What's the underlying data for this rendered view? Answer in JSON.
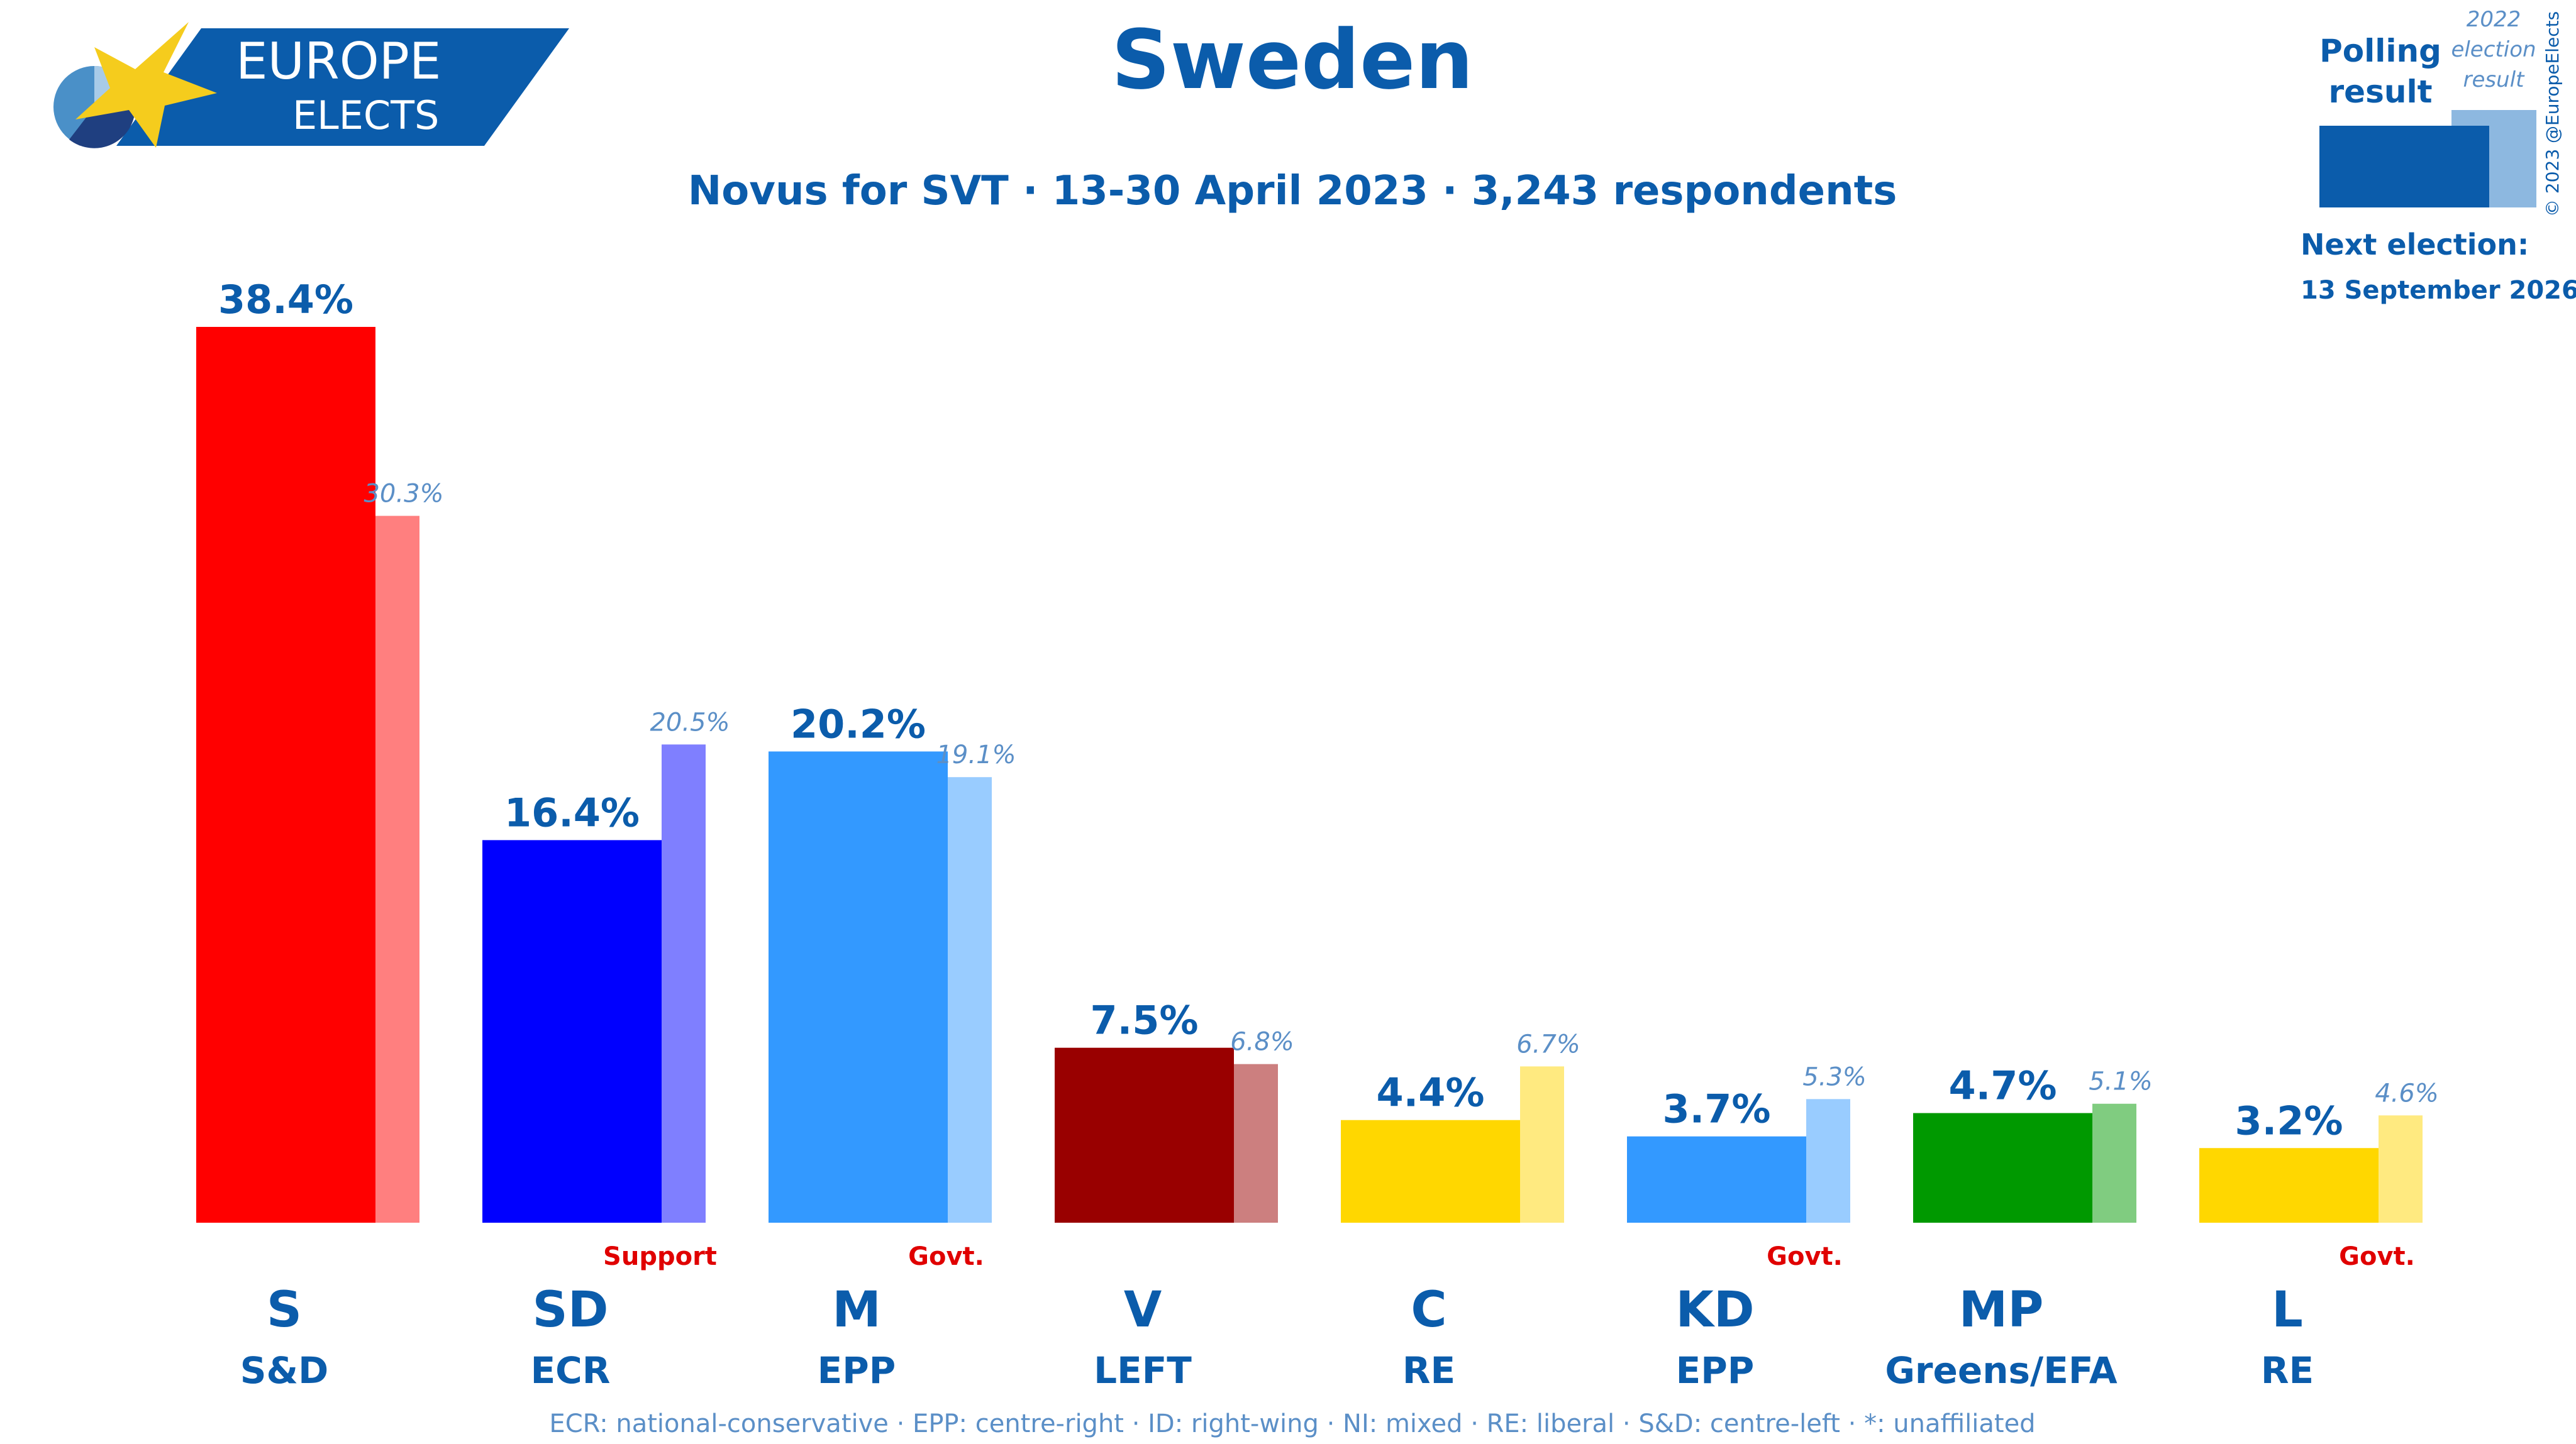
{
  "header": {
    "logo_line1": "EUROPE",
    "logo_line2": "ELECTS",
    "title": "Sweden",
    "subtitle": "Novus for SVT · 13-30 April 2023 · 3,243 respondents"
  },
  "legend_box": {
    "polling_label_1": "Polling",
    "polling_label_2": "result",
    "election_label_1": "2022",
    "election_label_2": "election",
    "election_label_3": "result",
    "copyright": "© 2023 @EuropeElects",
    "next_election_label": "Next election:",
    "next_election_date": "13 September 2026"
  },
  "footer": {
    "glossary": "ECR: national-conservative · EPP: centre-right · ID: right-wing · NI: mixed · RE: liberal · S&D: centre-left · *: unaffiliated"
  },
  "chart_data": {
    "type": "bar",
    "title": "Sweden",
    "subtitle": "Novus for SVT · 13-30 April 2023 · 3,243 respondents",
    "categories": [
      "S",
      "SD",
      "M",
      "V",
      "C",
      "KD",
      "MP",
      "L"
    ],
    "groups": [
      "S&D",
      "ECR",
      "EPP",
      "LEFT",
      "RE",
      "EPP",
      "Greens/EFA",
      "RE"
    ],
    "status": [
      "",
      "Support",
      "Govt.",
      "",
      "",
      "Govt.",
      "",
      "Govt."
    ],
    "series": [
      {
        "values": [
          38.4,
          16.4,
          20.2,
          7.5,
          4.4,
          3.7,
          4.7,
          3.2
        ]
      },
      {
        "values": [
          30.3,
          20.5,
          19.1,
          6.8,
          6.7,
          5.3,
          5.1,
          4.6
        ]
      }
    ],
    "poll_labels": [
      "38.4%",
      "16.4%",
      "20.2%",
      "7.5%",
      "4.4%",
      "3.7%",
      "4.7%",
      "3.2%"
    ],
    "election_labels": [
      "30.3%",
      "20.5%",
      "19.1%",
      "6.8%",
      "6.7%",
      "5.3%",
      "5.1%",
      "4.6%"
    ],
    "colors": [
      "#ff0000",
      "#0000ff",
      "#3399ff",
      "#990000",
      "#ffd700",
      "#3399ff",
      "#009900",
      "#ffd700"
    ],
    "election_colors": [
      "#ff7f7f",
      "#7f7fff",
      "#99ccff",
      "#cc7f7f",
      "#ffea80",
      "#99ccff",
      "#80cc80",
      "#ffea80"
    ],
    "ylim": [
      0,
      40
    ],
    "grid": false
  }
}
